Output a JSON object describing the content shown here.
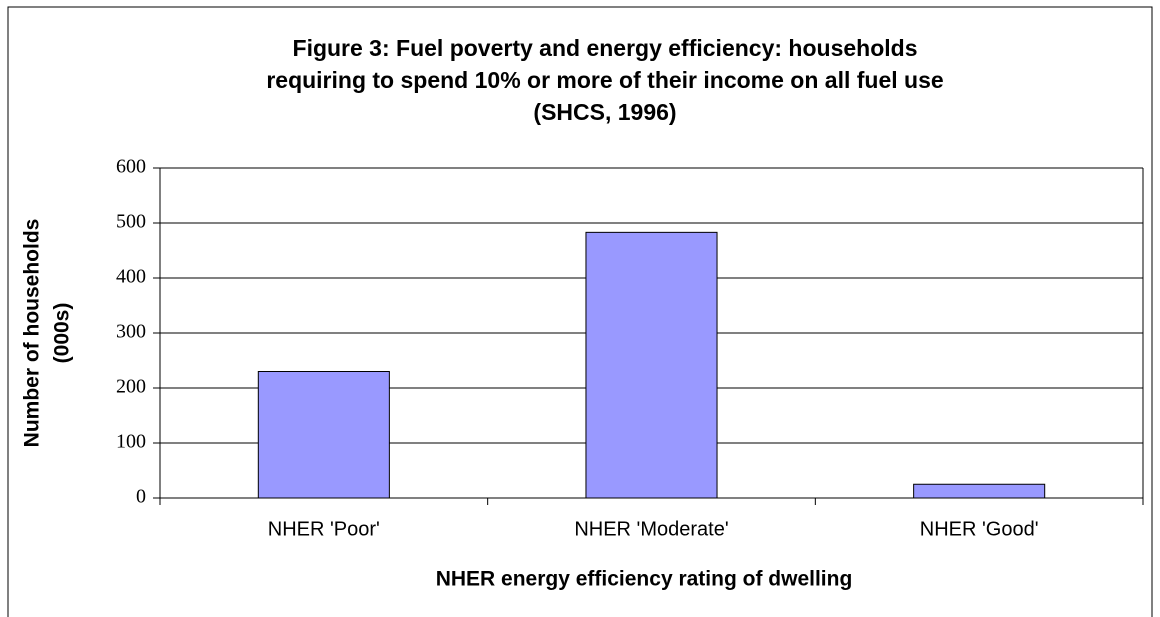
{
  "chart_data": {
    "type": "bar",
    "title": [
      "Figure 3: Fuel poverty and energy efficiency: households",
      "requiring to spend 10% or more of their income on all fuel use",
      "(SHCS, 1996)"
    ],
    "x_label": "NHER energy efficiency rating of dwelling",
    "y_label": [
      "Number of households",
      "(000s)"
    ],
    "categories": [
      "NHER 'Poor'",
      "NHER 'Moderate'",
      "NHER 'Good'"
    ],
    "values": [
      230,
      483,
      25
    ],
    "color": "#9999ff",
    "ylim": [
      0,
      600
    ],
    "yticks": [
      0,
      100,
      200,
      300,
      400,
      500,
      600
    ],
    "grid": true
  }
}
